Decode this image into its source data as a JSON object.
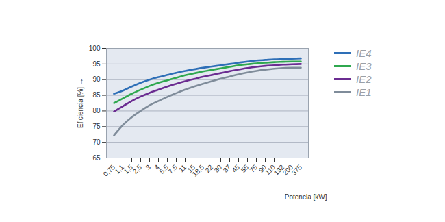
{
  "chart_data": {
    "type": "line",
    "x_label": "Potencia [kW]",
    "y_label": "Eficiencia [%]",
    "categories": [
      "0,75",
      "1,1",
      "1,5",
      "2,5",
      "3",
      "4",
      "5,5",
      "7,5",
      "11",
      "15",
      "18,5",
      "22",
      "30",
      "37",
      "45",
      "55",
      "75",
      "90",
      "110",
      "132",
      "200",
      "375"
    ],
    "series": [
      {
        "name": "IE4",
        "color": "#2e6fb7",
        "values": [
          85.5,
          86.5,
          87.8,
          89,
          90,
          90.8,
          91.5,
          92.2,
          92.8,
          93.3,
          93.8,
          94.2,
          94.6,
          95,
          95.4,
          95.8,
          96.1,
          96.3,
          96.5,
          96.6,
          96.7,
          96.8
        ]
      },
      {
        "name": "IE3",
        "color": "#2fa84f",
        "values": [
          82.5,
          84,
          85.5,
          86.8,
          88,
          89,
          89.8,
          90.6,
          91.4,
          92,
          92.6,
          93.1,
          93.6,
          94.1,
          94.6,
          94.9,
          95.2,
          95.4,
          95.6,
          95.7,
          95.8,
          95.8
        ]
      },
      {
        "name": "IE2",
        "color": "#6b2c91",
        "values": [
          79.8,
          81.5,
          83.2,
          84.6,
          85.8,
          86.8,
          87.8,
          88.7,
          89.5,
          90.2,
          90.9,
          91.5,
          92.1,
          92.7,
          93.2,
          93.7,
          94.1,
          94.4,
          94.6,
          94.8,
          94.9,
          95
        ]
      },
      {
        "name": "IE1",
        "color": "#7f8c9a",
        "values": [
          72.2,
          75.5,
          78,
          80,
          81.8,
          83.2,
          84.5,
          85.7,
          86.8,
          87.8,
          88.7,
          89.5,
          90.3,
          91,
          91.7,
          92.3,
          92.8,
          93.2,
          93.5,
          93.7,
          93.8,
          93.8
        ]
      }
    ],
    "ylim": [
      65,
      100
    ],
    "yticks": [
      65,
      70,
      75,
      80,
      85,
      90,
      95,
      100
    ],
    "grid": true,
    "legend": "right"
  }
}
